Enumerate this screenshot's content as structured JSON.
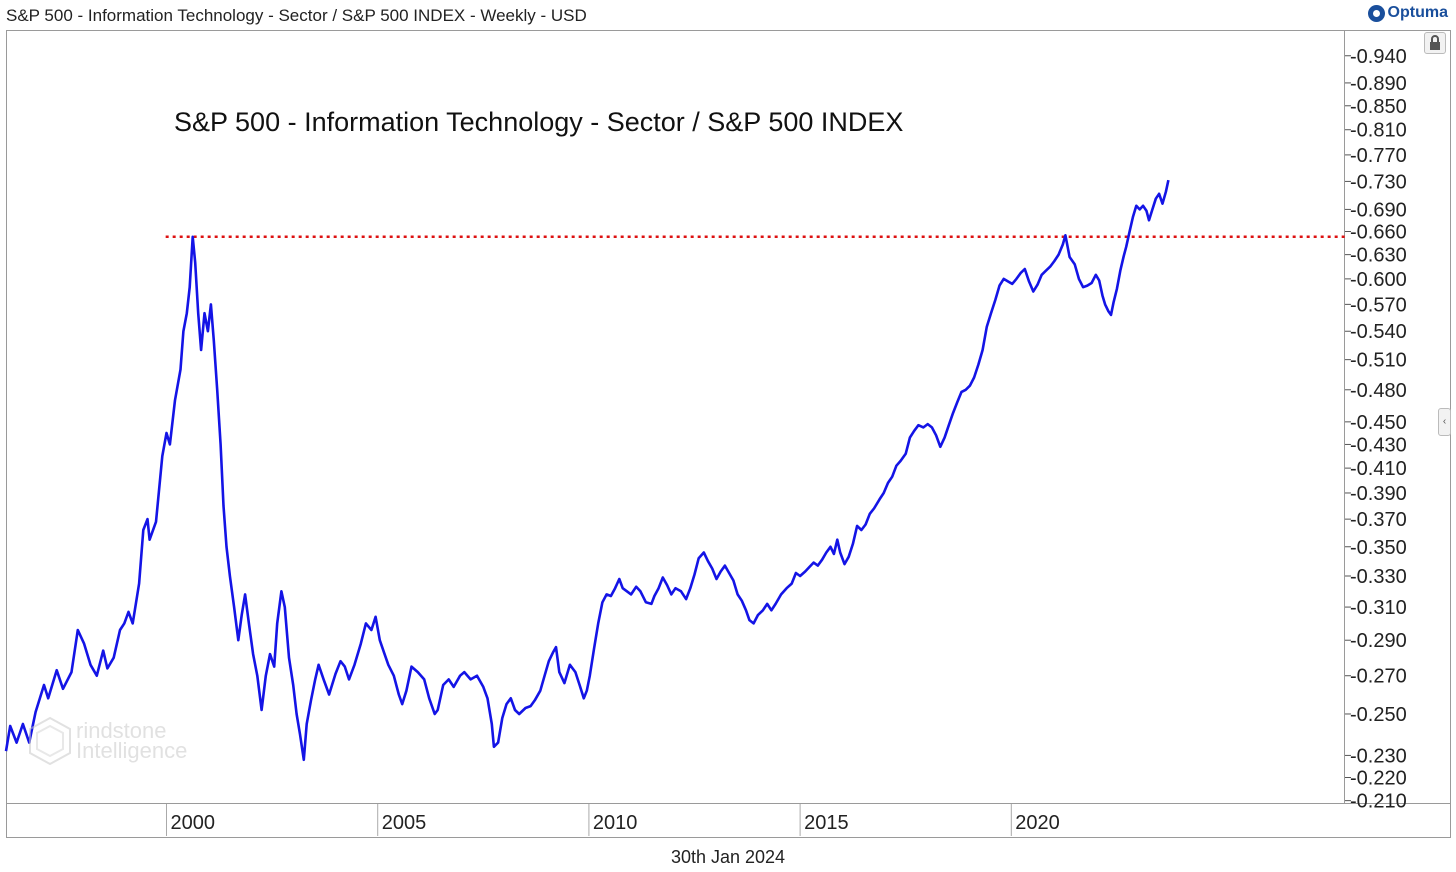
{
  "header": {
    "window_title": "S&P 500 - Information Technology - Sector / S&P 500 INDEX - Weekly - USD",
    "brand": "Optuma",
    "brand_icon": "optuma-logo-icon"
  },
  "toolbar": {
    "lock_icon": "lock-icon",
    "collapse_icon": "chevron-left-icon",
    "collapse_glyph": "‹"
  },
  "watermark": {
    "line1": "rindstone",
    "line2": "Intelligence",
    "icon": "grindstone-hexagon-logo-icon"
  },
  "footer": {
    "date": "30th Jan 2024"
  },
  "colors": {
    "series": "#1414e6",
    "resistance": "#dd1111",
    "frame": "#9a9a9a",
    "brand": "#1a4f9c"
  },
  "chart_data": {
    "type": "line",
    "title": "S&P 500 - Information Technology - Sector / S&P 500 INDEX",
    "xlabel": "",
    "ylabel": "",
    "y_scale": "log",
    "xlim": [
      1996.2,
      2027.9
    ],
    "ylim": [
      0.209,
      0.99
    ],
    "grid": false,
    "legend": "none",
    "x_tick_labels": [
      "2000",
      "2005",
      "2010",
      "2015",
      "2020"
    ],
    "y_tick_labels": [
      "0.940",
      "0.890",
      "0.850",
      "0.810",
      "0.770",
      "0.730",
      "0.690",
      "0.660",
      "0.630",
      "0.600",
      "0.570",
      "0.540",
      "0.510",
      "0.480",
      "0.450",
      "0.430",
      "0.410",
      "0.390",
      "0.370",
      "0.350",
      "0.330",
      "0.310",
      "0.290",
      "0.270",
      "0.250",
      "0.230",
      "0.220",
      "0.210"
    ],
    "resistance_level": {
      "from": 1999.98,
      "value": 0.653
    },
    "series": [
      {
        "values": [
          [
            1996.2,
            0.232
          ],
          [
            1996.3,
            0.244
          ],
          [
            1996.45,
            0.236
          ],
          [
            1996.6,
            0.245
          ],
          [
            1996.75,
            0.236
          ],
          [
            1996.9,
            0.251
          ],
          [
            1997.1,
            0.265
          ],
          [
            1997.2,
            0.258
          ],
          [
            1997.4,
            0.273
          ],
          [
            1997.55,
            0.263
          ],
          [
            1997.75,
            0.272
          ],
          [
            1997.9,
            0.296
          ],
          [
            1998.05,
            0.288
          ],
          [
            1998.2,
            0.276
          ],
          [
            1998.35,
            0.27
          ],
          [
            1998.5,
            0.284
          ],
          [
            1998.6,
            0.274
          ],
          [
            1998.75,
            0.28
          ],
          [
            1998.9,
            0.296
          ],
          [
            1999.0,
            0.3
          ],
          [
            1999.1,
            0.307
          ],
          [
            1999.2,
            0.3
          ],
          [
            1999.35,
            0.325
          ],
          [
            1999.45,
            0.362
          ],
          [
            1999.55,
            0.37
          ],
          [
            1999.6,
            0.355
          ],
          [
            1999.75,
            0.368
          ],
          [
            1999.9,
            0.42
          ],
          [
            2000.0,
            0.44
          ],
          [
            2000.08,
            0.43
          ],
          [
            2000.2,
            0.47
          ],
          [
            2000.33,
            0.5
          ],
          [
            2000.4,
            0.54
          ],
          [
            2000.48,
            0.56
          ],
          [
            2000.55,
            0.59
          ],
          [
            2000.62,
            0.653
          ],
          [
            2000.68,
            0.62
          ],
          [
            2000.75,
            0.56
          ],
          [
            2000.82,
            0.52
          ],
          [
            2000.9,
            0.56
          ],
          [
            2000.98,
            0.54
          ],
          [
            2001.05,
            0.57
          ],
          [
            2001.12,
            0.53
          ],
          [
            2001.2,
            0.48
          ],
          [
            2001.28,
            0.43
          ],
          [
            2001.35,
            0.38
          ],
          [
            2001.42,
            0.35
          ],
          [
            2001.5,
            0.33
          ],
          [
            2001.6,
            0.31
          ],
          [
            2001.7,
            0.29
          ],
          [
            2001.78,
            0.305
          ],
          [
            2001.86,
            0.318
          ],
          [
            2001.95,
            0.3
          ],
          [
            2002.05,
            0.282
          ],
          [
            2002.15,
            0.27
          ],
          [
            2002.25,
            0.252
          ],
          [
            2002.35,
            0.27
          ],
          [
            2002.45,
            0.282
          ],
          [
            2002.55,
            0.275
          ],
          [
            2002.62,
            0.3
          ],
          [
            2002.72,
            0.32
          ],
          [
            2002.8,
            0.31
          ],
          [
            2002.9,
            0.28
          ],
          [
            2003.0,
            0.265
          ],
          [
            2003.08,
            0.25
          ],
          [
            2003.16,
            0.24
          ],
          [
            2003.25,
            0.228
          ],
          [
            2003.32,
            0.245
          ],
          [
            2003.42,
            0.257
          ],
          [
            2003.52,
            0.268
          ],
          [
            2003.6,
            0.276
          ],
          [
            2003.72,
            0.268
          ],
          [
            2003.85,
            0.26
          ],
          [
            2004.0,
            0.271
          ],
          [
            2004.12,
            0.278
          ],
          [
            2004.22,
            0.275
          ],
          [
            2004.32,
            0.268
          ],
          [
            2004.45,
            0.276
          ],
          [
            2004.6,
            0.288
          ],
          [
            2004.72,
            0.3
          ],
          [
            2004.85,
            0.296
          ],
          [
            2004.95,
            0.304
          ],
          [
            2005.05,
            0.29
          ],
          [
            2005.15,
            0.283
          ],
          [
            2005.25,
            0.276
          ],
          [
            2005.38,
            0.27
          ],
          [
            2005.5,
            0.26
          ],
          [
            2005.58,
            0.255
          ],
          [
            2005.68,
            0.262
          ],
          [
            2005.8,
            0.275
          ],
          [
            2005.95,
            0.272
          ],
          [
            2006.1,
            0.268
          ],
          [
            2006.22,
            0.258
          ],
          [
            2006.35,
            0.25
          ],
          [
            2006.42,
            0.252
          ],
          [
            2006.55,
            0.265
          ],
          [
            2006.68,
            0.268
          ],
          [
            2006.8,
            0.264
          ],
          [
            2006.95,
            0.27
          ],
          [
            2007.05,
            0.272
          ],
          [
            2007.2,
            0.268
          ],
          [
            2007.35,
            0.27
          ],
          [
            2007.5,
            0.264
          ],
          [
            2007.6,
            0.258
          ],
          [
            2007.7,
            0.245
          ],
          [
            2007.75,
            0.234
          ],
          [
            2007.85,
            0.236
          ],
          [
            2007.95,
            0.248
          ],
          [
            2008.05,
            0.255
          ],
          [
            2008.15,
            0.258
          ],
          [
            2008.25,
            0.252
          ],
          [
            2008.35,
            0.25
          ],
          [
            2008.5,
            0.253
          ],
          [
            2008.62,
            0.254
          ],
          [
            2008.72,
            0.257
          ],
          [
            2008.85,
            0.262
          ],
          [
            2008.95,
            0.27
          ],
          [
            2009.05,
            0.278
          ],
          [
            2009.15,
            0.283
          ],
          [
            2009.22,
            0.286
          ],
          [
            2009.3,
            0.272
          ],
          [
            2009.42,
            0.266
          ],
          [
            2009.55,
            0.276
          ],
          [
            2009.68,
            0.272
          ],
          [
            2009.78,
            0.265
          ],
          [
            2009.88,
            0.258
          ],
          [
            2009.95,
            0.262
          ],
          [
            2010.02,
            0.27
          ],
          [
            2010.12,
            0.285
          ],
          [
            2010.22,
            0.3
          ],
          [
            2010.32,
            0.313
          ],
          [
            2010.42,
            0.318
          ],
          [
            2010.52,
            0.317
          ],
          [
            2010.62,
            0.322
          ],
          [
            2010.72,
            0.328
          ],
          [
            2010.8,
            0.322
          ],
          [
            2010.9,
            0.32
          ],
          [
            2011.0,
            0.318
          ],
          [
            2011.12,
            0.323
          ],
          [
            2011.22,
            0.32
          ],
          [
            2011.35,
            0.313
          ],
          [
            2011.48,
            0.312
          ],
          [
            2011.55,
            0.317
          ],
          [
            2011.65,
            0.322
          ],
          [
            2011.75,
            0.329
          ],
          [
            2011.85,
            0.324
          ],
          [
            2011.95,
            0.318
          ],
          [
            2012.05,
            0.322
          ],
          [
            2012.18,
            0.32
          ],
          [
            2012.3,
            0.315
          ],
          [
            2012.4,
            0.322
          ],
          [
            2012.5,
            0.331
          ],
          [
            2012.6,
            0.342
          ],
          [
            2012.72,
            0.346
          ],
          [
            2012.82,
            0.34
          ],
          [
            2012.92,
            0.335
          ],
          [
            2013.02,
            0.328
          ],
          [
            2013.12,
            0.333
          ],
          [
            2013.22,
            0.337
          ],
          [
            2013.32,
            0.332
          ],
          [
            2013.42,
            0.327
          ],
          [
            2013.52,
            0.318
          ],
          [
            2013.62,
            0.314
          ],
          [
            2013.72,
            0.308
          ],
          [
            2013.8,
            0.302
          ],
          [
            2013.9,
            0.3
          ],
          [
            2014.0,
            0.305
          ],
          [
            2014.12,
            0.308
          ],
          [
            2014.22,
            0.312
          ],
          [
            2014.32,
            0.308
          ],
          [
            2014.42,
            0.312
          ],
          [
            2014.55,
            0.318
          ],
          [
            2014.68,
            0.322
          ],
          [
            2014.8,
            0.325
          ],
          [
            2014.9,
            0.332
          ],
          [
            2015.0,
            0.33
          ],
          [
            2015.12,
            0.333
          ],
          [
            2015.22,
            0.336
          ],
          [
            2015.32,
            0.339
          ],
          [
            2015.42,
            0.337
          ],
          [
            2015.52,
            0.341
          ],
          [
            2015.62,
            0.346
          ],
          [
            2015.72,
            0.35
          ],
          [
            2015.8,
            0.345
          ],
          [
            2015.88,
            0.355
          ],
          [
            2015.95,
            0.346
          ],
          [
            2016.05,
            0.338
          ],
          [
            2016.15,
            0.343
          ],
          [
            2016.25,
            0.352
          ],
          [
            2016.35,
            0.365
          ],
          [
            2016.45,
            0.362
          ],
          [
            2016.55,
            0.366
          ],
          [
            2016.65,
            0.374
          ],
          [
            2016.75,
            0.378
          ],
          [
            2016.88,
            0.385
          ],
          [
            2016.98,
            0.39
          ],
          [
            2017.08,
            0.398
          ],
          [
            2017.18,
            0.403
          ],
          [
            2017.28,
            0.412
          ],
          [
            2017.38,
            0.416
          ],
          [
            2017.5,
            0.422
          ],
          [
            2017.6,
            0.436
          ],
          [
            2017.7,
            0.442
          ],
          [
            2017.8,
            0.447
          ],
          [
            2017.92,
            0.445
          ],
          [
            2018.02,
            0.448
          ],
          [
            2018.12,
            0.445
          ],
          [
            2018.22,
            0.438
          ],
          [
            2018.32,
            0.428
          ],
          [
            2018.42,
            0.436
          ],
          [
            2018.52,
            0.447
          ],
          [
            2018.62,
            0.458
          ],
          [
            2018.72,
            0.468
          ],
          [
            2018.82,
            0.478
          ],
          [
            2018.92,
            0.48
          ],
          [
            2019.02,
            0.484
          ],
          [
            2019.12,
            0.492
          ],
          [
            2019.22,
            0.505
          ],
          [
            2019.32,
            0.52
          ],
          [
            2019.42,
            0.545
          ],
          [
            2019.52,
            0.56
          ],
          [
            2019.62,
            0.575
          ],
          [
            2019.72,
            0.592
          ],
          [
            2019.82,
            0.6
          ],
          [
            2019.92,
            0.597
          ],
          [
            2020.02,
            0.594
          ],
          [
            2020.12,
            0.6
          ],
          [
            2020.22,
            0.607
          ],
          [
            2020.32,
            0.612
          ],
          [
            2020.42,
            0.597
          ],
          [
            2020.52,
            0.585
          ],
          [
            2020.62,
            0.593
          ],
          [
            2020.72,
            0.605
          ],
          [
            2020.82,
            0.61
          ],
          [
            2020.92,
            0.615
          ],
          [
            2021.02,
            0.622
          ],
          [
            2021.12,
            0.63
          ],
          [
            2021.22,
            0.643
          ],
          [
            2021.28,
            0.655
          ],
          [
            2021.38,
            0.627
          ],
          [
            2021.5,
            0.618
          ],
          [
            2021.6,
            0.6
          ],
          [
            2021.7,
            0.59
          ],
          [
            2021.8,
            0.592
          ],
          [
            2021.9,
            0.595
          ],
          [
            2022.0,
            0.605
          ],
          [
            2022.08,
            0.598
          ],
          [
            2022.16,
            0.58
          ],
          [
            2022.22,
            0.57
          ],
          [
            2022.3,
            0.562
          ],
          [
            2022.36,
            0.558
          ],
          [
            2022.42,
            0.572
          ],
          [
            2022.5,
            0.588
          ],
          [
            2022.58,
            0.61
          ],
          [
            2022.66,
            0.628
          ],
          [
            2022.72,
            0.64
          ],
          [
            2022.8,
            0.66
          ],
          [
            2022.88,
            0.68
          ],
          [
            2022.96,
            0.695
          ],
          [
            2023.04,
            0.69
          ],
          [
            2023.12,
            0.695
          ],
          [
            2023.2,
            0.688
          ],
          [
            2023.26,
            0.675
          ],
          [
            2023.34,
            0.69
          ],
          [
            2023.42,
            0.705
          ],
          [
            2023.5,
            0.712
          ],
          [
            2023.58,
            0.698
          ],
          [
            2023.66,
            0.715
          ],
          [
            2023.72,
            0.732
          ]
        ]
      }
    ]
  }
}
